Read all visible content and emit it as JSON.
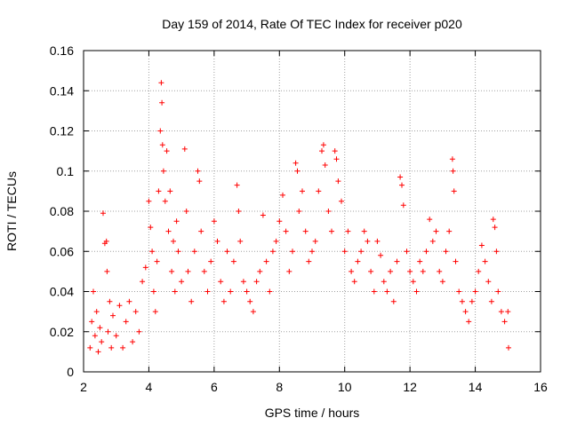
{
  "chart_data": {
    "type": "scatter",
    "title": "Day 159 of 2014, Rate Of TEC Index for receiver p020",
    "xlabel": "GPS time / hours",
    "ylabel": "ROTI / TECUs",
    "xlim": [
      2,
      16
    ],
    "ylim": [
      0,
      0.16
    ],
    "x_ticks": [
      2,
      4,
      6,
      8,
      10,
      12,
      14,
      16
    ],
    "x_tick_labels": [
      "2",
      "4",
      "6",
      "8",
      "10",
      "12",
      "14",
      "16"
    ],
    "y_ticks": [
      0,
      0.02,
      0.04,
      0.06,
      0.08,
      0.1,
      0.12,
      0.14,
      0.16
    ],
    "y_tick_labels": [
      "0",
      "0.02",
      "0.04",
      "0.06",
      "0.08",
      "0.1",
      "0.12",
      "0.14",
      "0.16"
    ],
    "grid": true,
    "marker": "+",
    "color": "#ff0000",
    "series": [
      {
        "name": "ROTI",
        "points": [
          [
            2.2,
            0.012
          ],
          [
            2.25,
            0.025
          ],
          [
            2.3,
            0.04
          ],
          [
            2.35,
            0.018
          ],
          [
            2.4,
            0.03
          ],
          [
            2.45,
            0.01
          ],
          [
            2.5,
            0.022
          ],
          [
            2.55,
            0.015
          ],
          [
            2.6,
            0.079
          ],
          [
            2.65,
            0.064
          ],
          [
            2.7,
            0.065
          ],
          [
            2.72,
            0.05
          ],
          [
            2.75,
            0.02
          ],
          [
            2.8,
            0.035
          ],
          [
            2.85,
            0.012
          ],
          [
            2.9,
            0.028
          ],
          [
            3.0,
            0.018
          ],
          [
            3.1,
            0.033
          ],
          [
            3.2,
            0.012
          ],
          [
            3.3,
            0.025
          ],
          [
            3.4,
            0.035
          ],
          [
            3.5,
            0.015
          ],
          [
            3.6,
            0.03
          ],
          [
            3.7,
            0.02
          ],
          [
            3.8,
            0.045
          ],
          [
            3.9,
            0.052
          ],
          [
            4.0,
            0.085
          ],
          [
            4.05,
            0.072
          ],
          [
            4.1,
            0.06
          ],
          [
            4.15,
            0.04
          ],
          [
            4.2,
            0.03
          ],
          [
            4.25,
            0.055
          ],
          [
            4.3,
            0.09
          ],
          [
            4.35,
            0.12
          ],
          [
            4.38,
            0.144
          ],
          [
            4.4,
            0.134
          ],
          [
            4.42,
            0.113
          ],
          [
            4.45,
            0.1
          ],
          [
            4.5,
            0.085
          ],
          [
            4.55,
            0.11
          ],
          [
            4.6,
            0.07
          ],
          [
            4.65,
            0.09
          ],
          [
            4.7,
            0.05
          ],
          [
            4.75,
            0.065
          ],
          [
            4.8,
            0.04
          ],
          [
            4.85,
            0.075
          ],
          [
            4.9,
            0.06
          ],
          [
            5.0,
            0.045
          ],
          [
            5.1,
            0.111
          ],
          [
            5.15,
            0.08
          ],
          [
            5.2,
            0.05
          ],
          [
            5.3,
            0.035
          ],
          [
            5.4,
            0.06
          ],
          [
            5.5,
            0.1
          ],
          [
            5.55,
            0.095
          ],
          [
            5.6,
            0.07
          ],
          [
            5.7,
            0.05
          ],
          [
            5.8,
            0.04
          ],
          [
            5.9,
            0.055
          ],
          [
            6.0,
            0.075
          ],
          [
            6.1,
            0.065
          ],
          [
            6.2,
            0.045
          ],
          [
            6.3,
            0.035
          ],
          [
            6.4,
            0.06
          ],
          [
            6.5,
            0.04
          ],
          [
            6.6,
            0.055
          ],
          [
            6.7,
            0.093
          ],
          [
            6.75,
            0.08
          ],
          [
            6.8,
            0.065
          ],
          [
            6.9,
            0.045
          ],
          [
            7.0,
            0.04
          ],
          [
            7.1,
            0.035
          ],
          [
            7.2,
            0.03
          ],
          [
            7.3,
            0.045
          ],
          [
            7.4,
            0.05
          ],
          [
            7.5,
            0.078
          ],
          [
            7.6,
            0.055
          ],
          [
            7.7,
            0.04
          ],
          [
            7.8,
            0.06
          ],
          [
            7.9,
            0.065
          ],
          [
            8.0,
            0.075
          ],
          [
            8.1,
            0.088
          ],
          [
            8.2,
            0.07
          ],
          [
            8.3,
            0.05
          ],
          [
            8.4,
            0.06
          ],
          [
            8.5,
            0.104
          ],
          [
            8.55,
            0.1
          ],
          [
            8.6,
            0.08
          ],
          [
            8.7,
            0.09
          ],
          [
            8.8,
            0.07
          ],
          [
            8.9,
            0.055
          ],
          [
            9.0,
            0.06
          ],
          [
            9.1,
            0.065
          ],
          [
            9.2,
            0.09
          ],
          [
            9.3,
            0.11
          ],
          [
            9.35,
            0.113
          ],
          [
            9.4,
            0.103
          ],
          [
            9.5,
            0.08
          ],
          [
            9.6,
            0.07
          ],
          [
            9.7,
            0.11
          ],
          [
            9.75,
            0.106
          ],
          [
            9.8,
            0.095
          ],
          [
            9.9,
            0.085
          ],
          [
            10.0,
            0.06
          ],
          [
            10.1,
            0.07
          ],
          [
            10.2,
            0.05
          ],
          [
            10.3,
            0.045
          ],
          [
            10.4,
            0.055
          ],
          [
            10.5,
            0.06
          ],
          [
            10.6,
            0.07
          ],
          [
            10.7,
            0.065
          ],
          [
            10.8,
            0.05
          ],
          [
            10.9,
            0.04
          ],
          [
            11.0,
            0.065
          ],
          [
            11.1,
            0.058
          ],
          [
            11.2,
            0.045
          ],
          [
            11.3,
            0.04
          ],
          [
            11.4,
            0.05
          ],
          [
            11.5,
            0.035
          ],
          [
            11.6,
            0.055
          ],
          [
            11.7,
            0.097
          ],
          [
            11.75,
            0.093
          ],
          [
            11.8,
            0.083
          ],
          [
            11.9,
            0.06
          ],
          [
            12.0,
            0.05
          ],
          [
            12.1,
            0.045
          ],
          [
            12.2,
            0.04
          ],
          [
            12.3,
            0.055
          ],
          [
            12.4,
            0.05
          ],
          [
            12.5,
            0.06
          ],
          [
            12.6,
            0.076
          ],
          [
            12.7,
            0.065
          ],
          [
            12.8,
            0.07
          ],
          [
            12.9,
            0.05
          ],
          [
            13.0,
            0.045
          ],
          [
            13.1,
            0.06
          ],
          [
            13.2,
            0.07
          ],
          [
            13.3,
            0.106
          ],
          [
            13.32,
            0.1
          ],
          [
            13.35,
            0.09
          ],
          [
            13.4,
            0.055
          ],
          [
            13.5,
            0.04
          ],
          [
            13.6,
            0.035
          ],
          [
            13.7,
            0.03
          ],
          [
            13.8,
            0.025
          ],
          [
            13.9,
            0.035
          ],
          [
            14.0,
            0.04
          ],
          [
            14.1,
            0.05
          ],
          [
            14.2,
            0.063
          ],
          [
            14.3,
            0.055
          ],
          [
            14.4,
            0.045
          ],
          [
            14.5,
            0.035
          ],
          [
            14.55,
            0.076
          ],
          [
            14.6,
            0.072
          ],
          [
            14.65,
            0.06
          ],
          [
            14.7,
            0.04
          ],
          [
            14.8,
            0.03
          ],
          [
            14.9,
            0.025
          ],
          [
            15.0,
            0.03
          ],
          [
            15.02,
            0.012
          ]
        ]
      }
    ]
  }
}
